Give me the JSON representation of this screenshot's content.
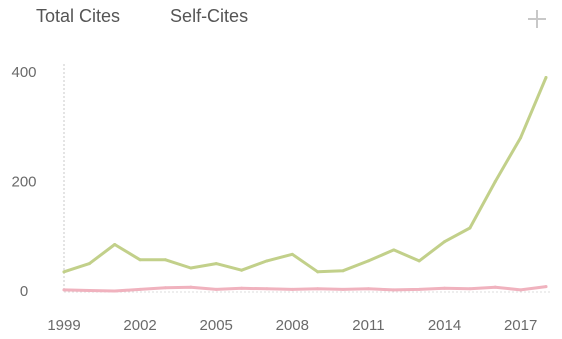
{
  "legend": {
    "total_label": "Total Cites",
    "self_label": "Self-Cites"
  },
  "icons": {
    "expand": "plus-icon"
  },
  "colors": {
    "total": "#c2d08a",
    "self": "#f0b2be",
    "axis": "#c8c8c8",
    "tick": "#6a6a6a"
  },
  "chart_data": {
    "type": "line",
    "title": "",
    "xlabel": "",
    "ylabel": "",
    "x": [
      1999,
      2000,
      2001,
      2002,
      2003,
      2004,
      2005,
      2006,
      2007,
      2008,
      2009,
      2010,
      2011,
      2012,
      2013,
      2014,
      2015,
      2016,
      2017,
      2018
    ],
    "series": [
      {
        "name": "Total Cites",
        "values": [
          35,
          50,
          85,
          57,
          57,
          42,
          50,
          38,
          55,
          67,
          35,
          37,
          55,
          75,
          55,
          90,
          115,
          200,
          280,
          390
        ]
      },
      {
        "name": "Self-Cites",
        "values": [
          2,
          1,
          0,
          3,
          6,
          7,
          3,
          5,
          4,
          3,
          4,
          3,
          4,
          2,
          3,
          5,
          4,
          7,
          2,
          8
        ]
      }
    ],
    "xlim": [
      1999,
      2018
    ],
    "ylim": [
      0,
      400
    ],
    "y_ticks": [
      0,
      200,
      400
    ],
    "x_ticks": [
      1999,
      2002,
      2005,
      2008,
      2011,
      2014,
      2017
    ],
    "grid": false,
    "legend_position": "top-left"
  }
}
